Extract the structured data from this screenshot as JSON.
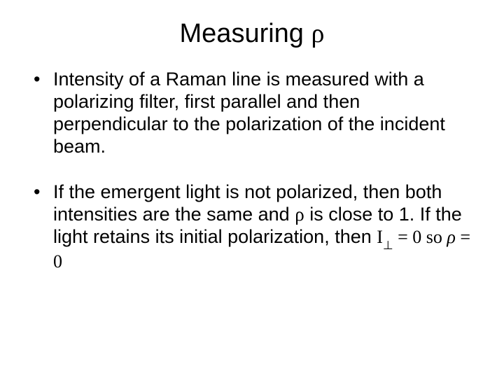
{
  "title_prefix": "Measuring ",
  "title_symbol": "ρ",
  "bullets": {
    "b1": "Intensity of a Raman line is measured with a polarizing filter, first parallel and then perpendicular to the polarization of the incident beam.",
    "b2_part1": "If the emergent light is not polarized, then both intensities are the same and ",
    "b2_rho": "ρ",
    "b2_part2": " is close to 1.  If the light retains its initial polarization, then ",
    "b2_formula_I": "I",
    "b2_formula_perp": "⊥",
    "b2_formula_eq0so": " = 0 so ",
    "b2_formula_rho": "ρ",
    "b2_formula_eq0": " = 0"
  },
  "colors": {
    "background": "#ffffff",
    "text": "#000000"
  },
  "fontsizes": {
    "title": 38,
    "body": 27,
    "formula": 26
  }
}
